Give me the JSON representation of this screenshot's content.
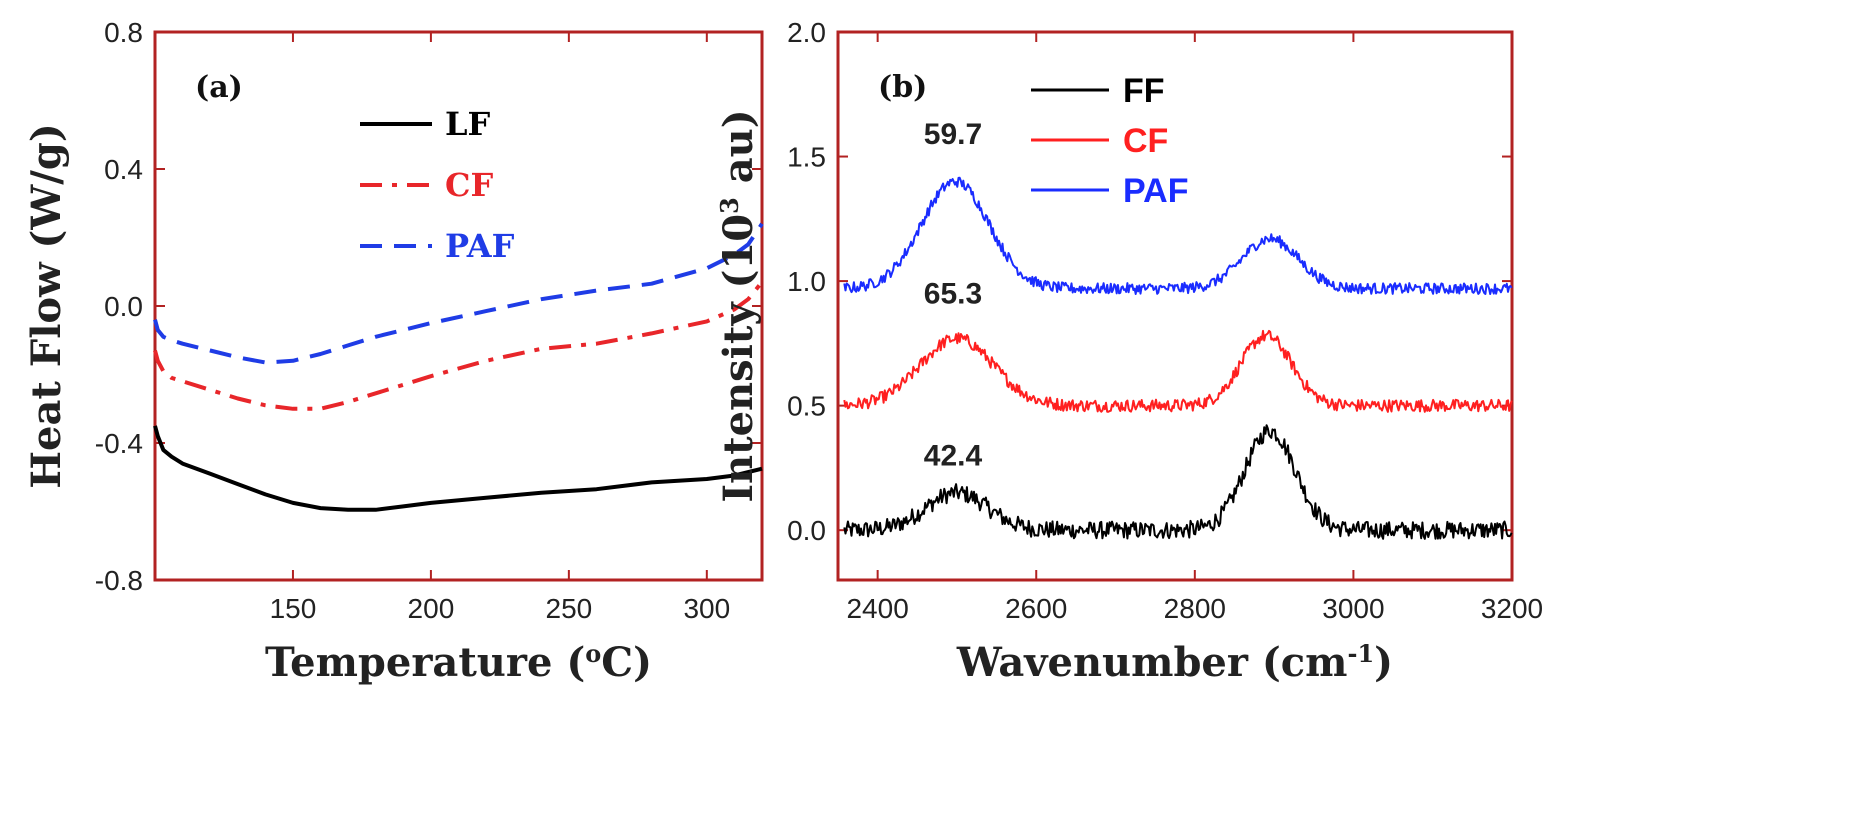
{
  "chart_data": [
    {
      "id": "a",
      "type": "line",
      "panel_label": "(a)",
      "xlabel_main": "Temperature (",
      "xlabel_sup": "o",
      "xlabel_end": "C)",
      "ylabel": "Heat Flow (W/g)",
      "xlim": [
        100,
        320
      ],
      "ylim": [
        -0.8,
        0.8
      ],
      "xticks": [
        150,
        200,
        250,
        300
      ],
      "yticks": [
        -0.8,
        -0.4,
        0.0,
        0.4,
        0.8
      ],
      "ytick_labels": [
        "-0.8",
        "-0.4",
        "0.0",
        "0.4",
        "0.8"
      ],
      "legend_position": "top-right",
      "axis_color": "#b22222",
      "series": [
        {
          "name": "LF",
          "color": "#000000",
          "dash": "solid",
          "x": [
            100,
            101,
            103,
            106,
            110,
            120,
            130,
            140,
            150,
            160,
            170,
            180,
            190,
            200,
            220,
            240,
            260,
            280,
            300,
            310,
            320
          ],
          "y": [
            -0.35,
            -0.38,
            -0.42,
            -0.44,
            -0.46,
            -0.49,
            -0.52,
            -0.55,
            -0.575,
            -0.59,
            -0.595,
            -0.595,
            -0.585,
            -0.575,
            -0.56,
            -0.545,
            -0.535,
            -0.515,
            -0.505,
            -0.495,
            -0.475
          ]
        },
        {
          "name": "CF",
          "color": "#e8262a",
          "dash": "dashdot",
          "x": [
            100,
            101,
            103,
            106,
            110,
            120,
            130,
            140,
            150,
            160,
            170,
            180,
            190,
            200,
            220,
            240,
            260,
            280,
            300,
            310,
            315,
            320
          ],
          "y": [
            -0.13,
            -0.16,
            -0.19,
            -0.21,
            -0.22,
            -0.245,
            -0.27,
            -0.29,
            -0.3,
            -0.3,
            -0.28,
            -0.255,
            -0.23,
            -0.205,
            -0.16,
            -0.125,
            -0.11,
            -0.08,
            -0.045,
            -0.01,
            0.02,
            0.07
          ]
        },
        {
          "name": "PAF",
          "color": "#1f3ce6",
          "dash": "dashed",
          "x": [
            100,
            101,
            103,
            106,
            110,
            120,
            130,
            140,
            150,
            160,
            170,
            180,
            190,
            200,
            220,
            240,
            260,
            280,
            300,
            310,
            315,
            320
          ],
          "y": [
            -0.04,
            -0.07,
            -0.09,
            -0.1,
            -0.11,
            -0.13,
            -0.15,
            -0.165,
            -0.16,
            -0.14,
            -0.115,
            -0.09,
            -0.07,
            -0.05,
            -0.015,
            0.02,
            0.045,
            0.065,
            0.11,
            0.15,
            0.18,
            0.24
          ]
        }
      ]
    },
    {
      "id": "b",
      "type": "line",
      "panel_label": "(b)",
      "xlabel_main": "Wavenumber (cm",
      "xlabel_sup": "-1",
      "xlabel_end": ")",
      "ylabel_main": "Intensity (10",
      "ylabel_sup": "3",
      "ylabel_end": " au)",
      "xlim": [
        2350,
        3200
      ],
      "ylim": [
        -0.2,
        2.0
      ],
      "xticks": [
        2400,
        2600,
        2800,
        3000,
        3200
      ],
      "yticks": [
        0.0,
        0.5,
        1.0,
        1.5,
        2.0
      ],
      "ytick_labels": [
        "0.0",
        "0.5",
        "1.0",
        "1.5",
        "2.0"
      ],
      "legend_position": "top-center",
      "axis_color": "#b22222",
      "annotations": [
        {
          "text": "59.7",
          "x": 2495,
          "y": 1.55
        },
        {
          "text": "65.3",
          "x": 2495,
          "y": 0.91
        },
        {
          "text": "42.4",
          "x": 2495,
          "y": 0.26
        }
      ],
      "series": [
        {
          "name": "FF",
          "color": "#000000",
          "baseline": 0.0,
          "noise": 0.035,
          "peaks": [
            {
              "center": 2500,
              "height": 0.15,
              "width": 55
            },
            {
              "center": 2895,
              "height": 0.4,
              "width": 45
            }
          ]
        },
        {
          "name": "CF",
          "color": "#ff2020",
          "baseline": 0.5,
          "noise": 0.025,
          "peaks": [
            {
              "center": 2500,
              "height": 0.27,
              "width": 65
            },
            {
              "center": 2890,
              "height": 0.28,
              "width": 45
            }
          ]
        },
        {
          "name": "PAF",
          "color": "#1a2cff",
          "baseline": 0.97,
          "noise": 0.022,
          "peaks": [
            {
              "center": 2498,
              "height": 0.43,
              "width": 60
            },
            {
              "center": 2895,
              "height": 0.2,
              "width": 50
            }
          ]
        }
      ]
    }
  ]
}
